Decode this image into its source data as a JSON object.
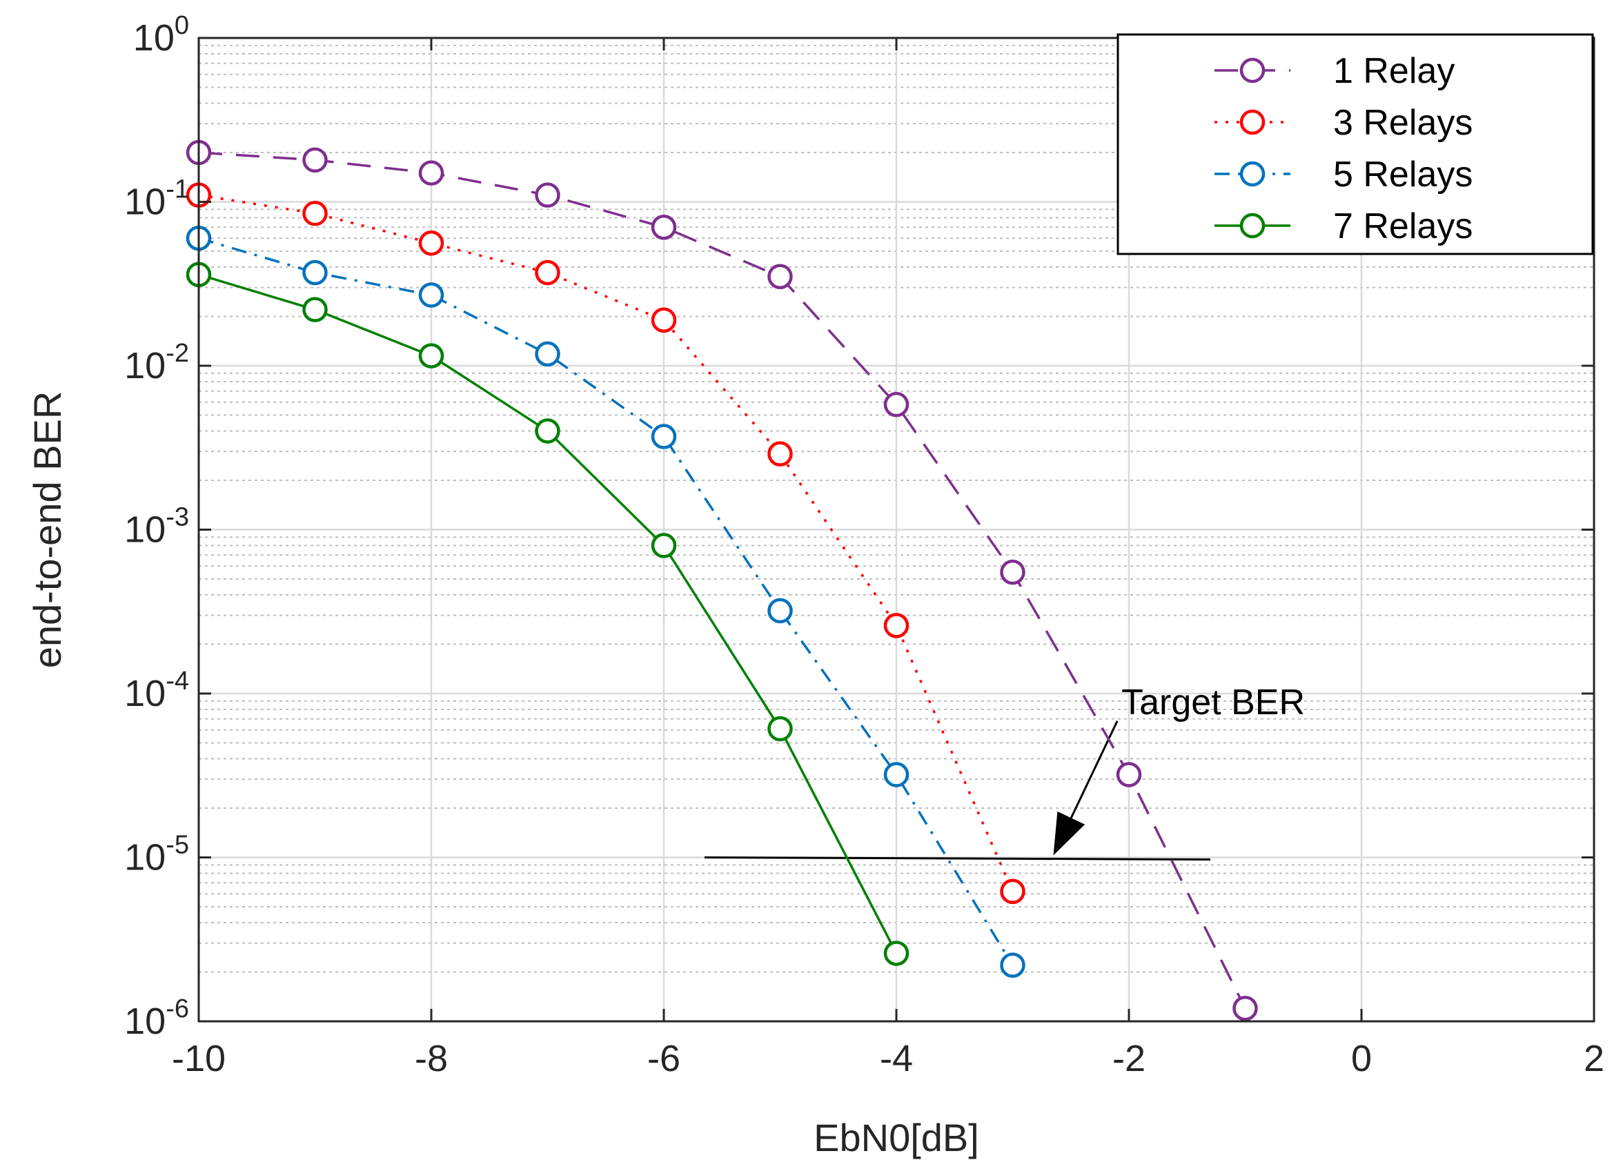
{
  "chart_data": {
    "type": "line",
    "title": "",
    "xlabel": "EbN0[dB]",
    "ylabel": "end-to-end BER",
    "xlim": [
      -10,
      2
    ],
    "ylim": [
      1e-06,
      1
    ],
    "yscale": "log",
    "grid": true,
    "minor_grid": true,
    "legend_position": "top-right",
    "x_ticks": [
      {
        "value": -10,
        "label": "-10"
      },
      {
        "value": -8,
        "label": "-8"
      },
      {
        "value": -6,
        "label": "-6"
      },
      {
        "value": -4,
        "label": "-4"
      },
      {
        "value": -2,
        "label": "-2"
      },
      {
        "value": 0,
        "label": "0"
      },
      {
        "value": 2,
        "label": "2"
      }
    ],
    "y_ticks": [
      {
        "value": 1,
        "base": "10",
        "exp": "0"
      },
      {
        "value": 0.1,
        "base": "10",
        "exp": "-1"
      },
      {
        "value": 0.01,
        "base": "10",
        "exp": "-2"
      },
      {
        "value": 0.001,
        "base": "10",
        "exp": "-3"
      },
      {
        "value": 0.0001,
        "base": "10",
        "exp": "-4"
      },
      {
        "value": 1e-05,
        "base": "10",
        "exp": "-5"
      },
      {
        "value": 1e-06,
        "base": "10",
        "exp": "-6"
      }
    ],
    "series": [
      {
        "name": "1 Relay",
        "color": "#7E2F8E",
        "dash": "dashed",
        "x": [
          -10,
          -9,
          -8,
          -7,
          -6,
          -5,
          -4,
          -3,
          -2,
          -1
        ],
        "values": [
          0.2,
          0.18,
          0.15,
          0.11,
          0.07,
          0.035,
          0.0058,
          0.00055,
          3.2e-05,
          1.2e-06
        ]
      },
      {
        "name": "3 Relays",
        "color": "#FF0000",
        "dash": "dotted",
        "x": [
          -10,
          -9,
          -8,
          -7,
          -6,
          -5,
          -4,
          -3
        ],
        "values": [
          0.11,
          0.085,
          0.056,
          0.037,
          0.019,
          0.0029,
          0.00026,
          6.2e-06
        ]
      },
      {
        "name": "5 Relays",
        "color": "#0072BD",
        "dash": "dashdot",
        "x": [
          -10,
          -9,
          -8,
          -7,
          -6,
          -5,
          -4,
          -3
        ],
        "values": [
          0.06,
          0.037,
          0.027,
          0.0118,
          0.0037,
          0.00032,
          3.2e-05,
          2.2e-06
        ]
      },
      {
        "name": "7 Relays",
        "color": "#008000",
        "dash": "solid",
        "x": [
          -10,
          -9,
          -8,
          -7,
          -6,
          -5,
          -4
        ],
        "values": [
          0.036,
          0.022,
          0.0115,
          0.004,
          0.0008,
          6.1e-05,
          2.6e-06
        ]
      }
    ],
    "annotations": [
      {
        "text": "Target BER",
        "line_x": [
          -5.65,
          -1.3
        ],
        "line_y": 1e-05,
        "arrow_from": [
          -2.1,
          6.8e-05
        ],
        "arrow_to": [
          -2.65,
          1.03e-05
        ]
      }
    ]
  }
}
